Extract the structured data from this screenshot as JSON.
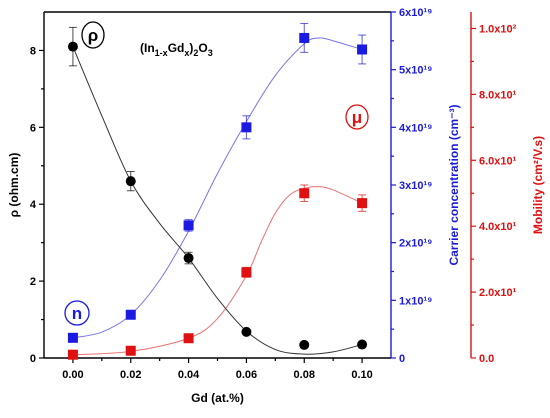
{
  "chart_data": {
    "type": "scatter",
    "title_parts": [
      "(In",
      "1-x",
      "Gd",
      "x",
      ")",
      "2",
      "O",
      "3"
    ],
    "xlabel": "Gd (at.%)",
    "x": [
      0.0,
      0.02,
      0.04,
      0.06,
      0.08,
      0.1
    ],
    "xlim": [
      -0.01,
      0.11
    ],
    "xticks": [
      "0.00",
      "0.02",
      "0.04",
      "0.06",
      "0.08",
      "0.10"
    ],
    "axes": {
      "left": {
        "label": "ρ (ohm.cm)",
        "ylim": [
          0,
          9
        ],
        "ticks": [
          0,
          2,
          4,
          6,
          8
        ],
        "tick_labels": [
          "0",
          "2",
          "4",
          "6",
          "8"
        ],
        "color": "#000000"
      },
      "right1": {
        "label": "Carrier concentration (cm⁻³)",
        "ylim": [
          0,
          6e+19
        ],
        "ticks": [
          0,
          1e+19,
          2e+19,
          3e+19,
          4e+19,
          5e+19,
          6e+19
        ],
        "tick_labels": [
          "0",
          "1x10¹⁹",
          "2x10¹⁹",
          "3x10¹⁹",
          "4x10¹⁹",
          "5x10¹⁹",
          "6x10¹⁹"
        ],
        "color": "#1a1ae0"
      },
      "right2": {
        "label": "Mobility (cm²/V.s)",
        "ylim": [
          0,
          105
        ],
        "ticks": [
          0,
          20,
          40,
          60,
          80,
          100
        ],
        "tick_labels": [
          "0.0",
          "2.0x10¹",
          "4.0x10¹",
          "6.0x10¹",
          "8.0x10¹",
          "1.0x10²"
        ],
        "color": "#e01010"
      }
    },
    "series": [
      {
        "name": "ρ",
        "axis": "left",
        "color": "#000000",
        "marker": "circle",
        "values": [
          8.1,
          4.6,
          2.6,
          0.68,
          0.34,
          0.35
        ],
        "errors": [
          0.5,
          0.25,
          0.15,
          0.05,
          0.05,
          0.05
        ],
        "fit": [
          [
            0.0,
            8.1
          ],
          [
            0.01,
            6.3
          ],
          [
            0.02,
            4.6
          ],
          [
            0.03,
            3.5
          ],
          [
            0.04,
            2.6
          ],
          [
            0.05,
            1.55
          ],
          [
            0.06,
            0.7
          ],
          [
            0.07,
            0.22
          ],
          [
            0.08,
            0.1
          ],
          [
            0.09,
            0.16
          ],
          [
            0.1,
            0.35
          ]
        ]
      },
      {
        "name": "n",
        "axis": "right1",
        "color": "#1a1ae0",
        "marker": "square",
        "values": [
          3.5e+18,
          7.5e+18,
          2.3e+19,
          4e+19,
          5.55e+19,
          5.35e+19
        ],
        "errors": [
          0,
          0,
          1e+18,
          2e+18,
          2.5e+18,
          2.5e+18
        ],
        "fit": [
          [
            0.0,
            3.5e+18
          ],
          [
            0.01,
            4.5e+18
          ],
          [
            0.02,
            7.5e+18
          ],
          [
            0.03,
            1.35e+19
          ],
          [
            0.04,
            2.2e+19
          ],
          [
            0.05,
            3.2e+19
          ],
          [
            0.06,
            4.1e+19
          ],
          [
            0.07,
            4.9e+19
          ],
          [
            0.08,
            5.45e+19
          ],
          [
            0.085,
            5.55e+19
          ],
          [
            0.09,
            5.5e+19
          ],
          [
            0.1,
            5.35e+19
          ]
        ]
      },
      {
        "name": "μ",
        "axis": "right2",
        "color": "#e01010",
        "marker": "square",
        "values": [
          1.0,
          2.2,
          6.0,
          26.0,
          50.0,
          47.0
        ],
        "errors": [
          0,
          0,
          0,
          1.5,
          2.5,
          2.5
        ],
        "fit": [
          [
            0.0,
            1.0
          ],
          [
            0.02,
            2.0
          ],
          [
            0.04,
            6.0
          ],
          [
            0.05,
            12.0
          ],
          [
            0.06,
            25.0
          ],
          [
            0.065,
            35.0
          ],
          [
            0.07,
            44.0
          ],
          [
            0.075,
            49.5
          ],
          [
            0.08,
            51.5
          ],
          [
            0.085,
            52.0
          ],
          [
            0.09,
            51.0
          ],
          [
            0.1,
            47.0
          ]
        ]
      }
    ],
    "labels": {
      "rho": "ρ",
      "n": "n",
      "mu": "μ"
    }
  }
}
